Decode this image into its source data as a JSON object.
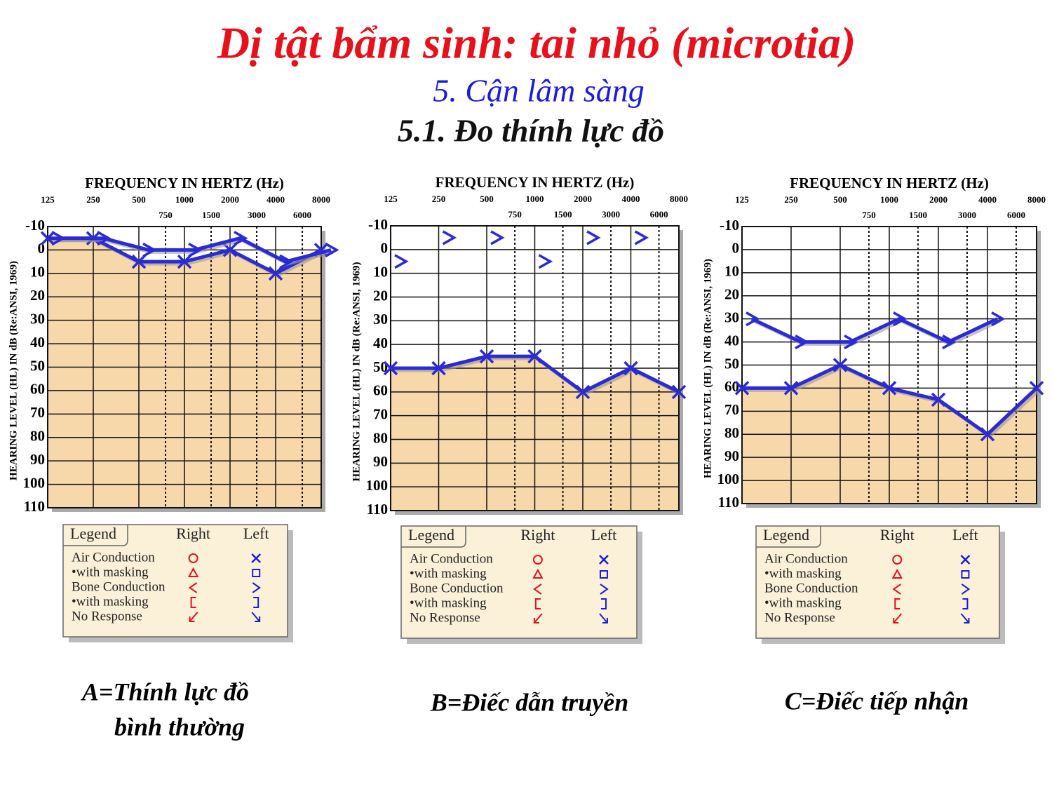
{
  "header": {
    "title": "Dị tật bẩm sinh: tai nhỏ (microtia)",
    "subtitle": "5. Cận lâm sàng",
    "section": "5.1. Đo thính lực đồ"
  },
  "legend": {
    "title": "Legend",
    "columns": [
      "Right",
      "Left"
    ],
    "rows": [
      "Air Conduction",
      "•with masking",
      "Bone Conduction",
      "•with masking",
      "No Response"
    ]
  },
  "chart_data": [
    {
      "type": "line",
      "title": "FREQUENCY IN HERTZ (Hz)",
      "y_label": "HEARING LEVEL (HL) IN dB (Re:ANSI, 1969)",
      "caption": [
        "A=Thính lực đồ",
        "bình thường"
      ],
      "xlim": [
        125,
        8000
      ],
      "log_x": true,
      "xticks": [
        125,
        250,
        500,
        750,
        1000,
        1500,
        2000,
        3000,
        4000,
        6000,
        8000
      ],
      "ylim": [
        -10,
        110
      ],
      "y_reversed": true,
      "yticks": [
        -10,
        0,
        10,
        20,
        30,
        40,
        50,
        60,
        70,
        80,
        90,
        100,
        110
      ],
      "grid": true,
      "fill_color": "#f7d8aa",
      "series": [
        {
          "name": "Air Conduction",
          "marker": "x",
          "color": "#2b2bd6",
          "fill": true,
          "x": [
            125,
            250,
            500,
            1000,
            2000,
            4000,
            8000
          ],
          "values": [
            -5,
            -5,
            5,
            5,
            0,
            10,
            0
          ]
        },
        {
          "name": "Bone Conduction",
          "marker": ">",
          "color": "#2b2bd6",
          "x": [
            125,
            250,
            500,
            1000,
            2000,
            4000,
            8000
          ],
          "values": [
            -5,
            -5,
            0,
            0,
            -5,
            5,
            0
          ]
        }
      ]
    },
    {
      "type": "line",
      "title": "FREQUENCY IN HERTZ (Hz)",
      "y_label": "HEARING LEVEL (HL) IN dB (Re:ANSI, 1969)",
      "caption": [
        "B=Điếc dẫn truyền"
      ],
      "xlim": [
        125,
        8000
      ],
      "log_x": true,
      "xticks": [
        125,
        250,
        500,
        750,
        1000,
        1500,
        2000,
        3000,
        4000,
        6000,
        8000
      ],
      "ylim": [
        -10,
        110
      ],
      "y_reversed": true,
      "yticks": [
        -10,
        0,
        10,
        20,
        30,
        40,
        50,
        60,
        70,
        80,
        90,
        100,
        110
      ],
      "grid": true,
      "fill_color": "#f7d8aa",
      "series": [
        {
          "name": "Air Conduction",
          "marker": "x",
          "color": "#2b2bd6",
          "fill": true,
          "x": [
            125,
            250,
            500,
            1000,
            2000,
            4000,
            8000
          ],
          "values": [
            50,
            50,
            45,
            45,
            60,
            50,
            60
          ]
        },
        {
          "name": "Bone Conduction",
          "marker": ">",
          "color": "#2b2bd6",
          "connect": false,
          "x": [
            125,
            250,
            500,
            1000,
            2000,
            4000
          ],
          "values": [
            5,
            -5,
            -5,
            5,
            -5,
            -5
          ]
        }
      ]
    },
    {
      "type": "line",
      "title": "FREQUENCY IN HERTZ (Hz)",
      "y_label": "HEARING LEVEL (HL) IN dB (Re:ANSI, 1969)",
      "caption": [
        "C=Điếc tiếp nhận"
      ],
      "xlim": [
        125,
        8000
      ],
      "log_x": true,
      "xticks": [
        125,
        250,
        500,
        750,
        1000,
        1500,
        2000,
        3000,
        4000,
        6000,
        8000
      ],
      "ylim": [
        -10,
        110
      ],
      "y_reversed": true,
      "yticks": [
        -10,
        0,
        10,
        20,
        30,
        40,
        50,
        60,
        70,
        80,
        90,
        100,
        110
      ],
      "grid": true,
      "fill_color": "#f7d8aa",
      "series": [
        {
          "name": "Air Conduction",
          "marker": "x",
          "color": "#2b2bd6",
          "fill": true,
          "x": [
            125,
            250,
            500,
            1000,
            2000,
            4000,
            8000
          ],
          "values": [
            60,
            60,
            50,
            60,
            65,
            80,
            60
          ]
        },
        {
          "name": "Bone Conduction",
          "marker": ">",
          "color": "#2b2bd6",
          "x": [
            125,
            250,
            500,
            1000,
            2000,
            4000
          ],
          "values": [
            30,
            40,
            40,
            30,
            40,
            30
          ]
        }
      ]
    }
  ]
}
